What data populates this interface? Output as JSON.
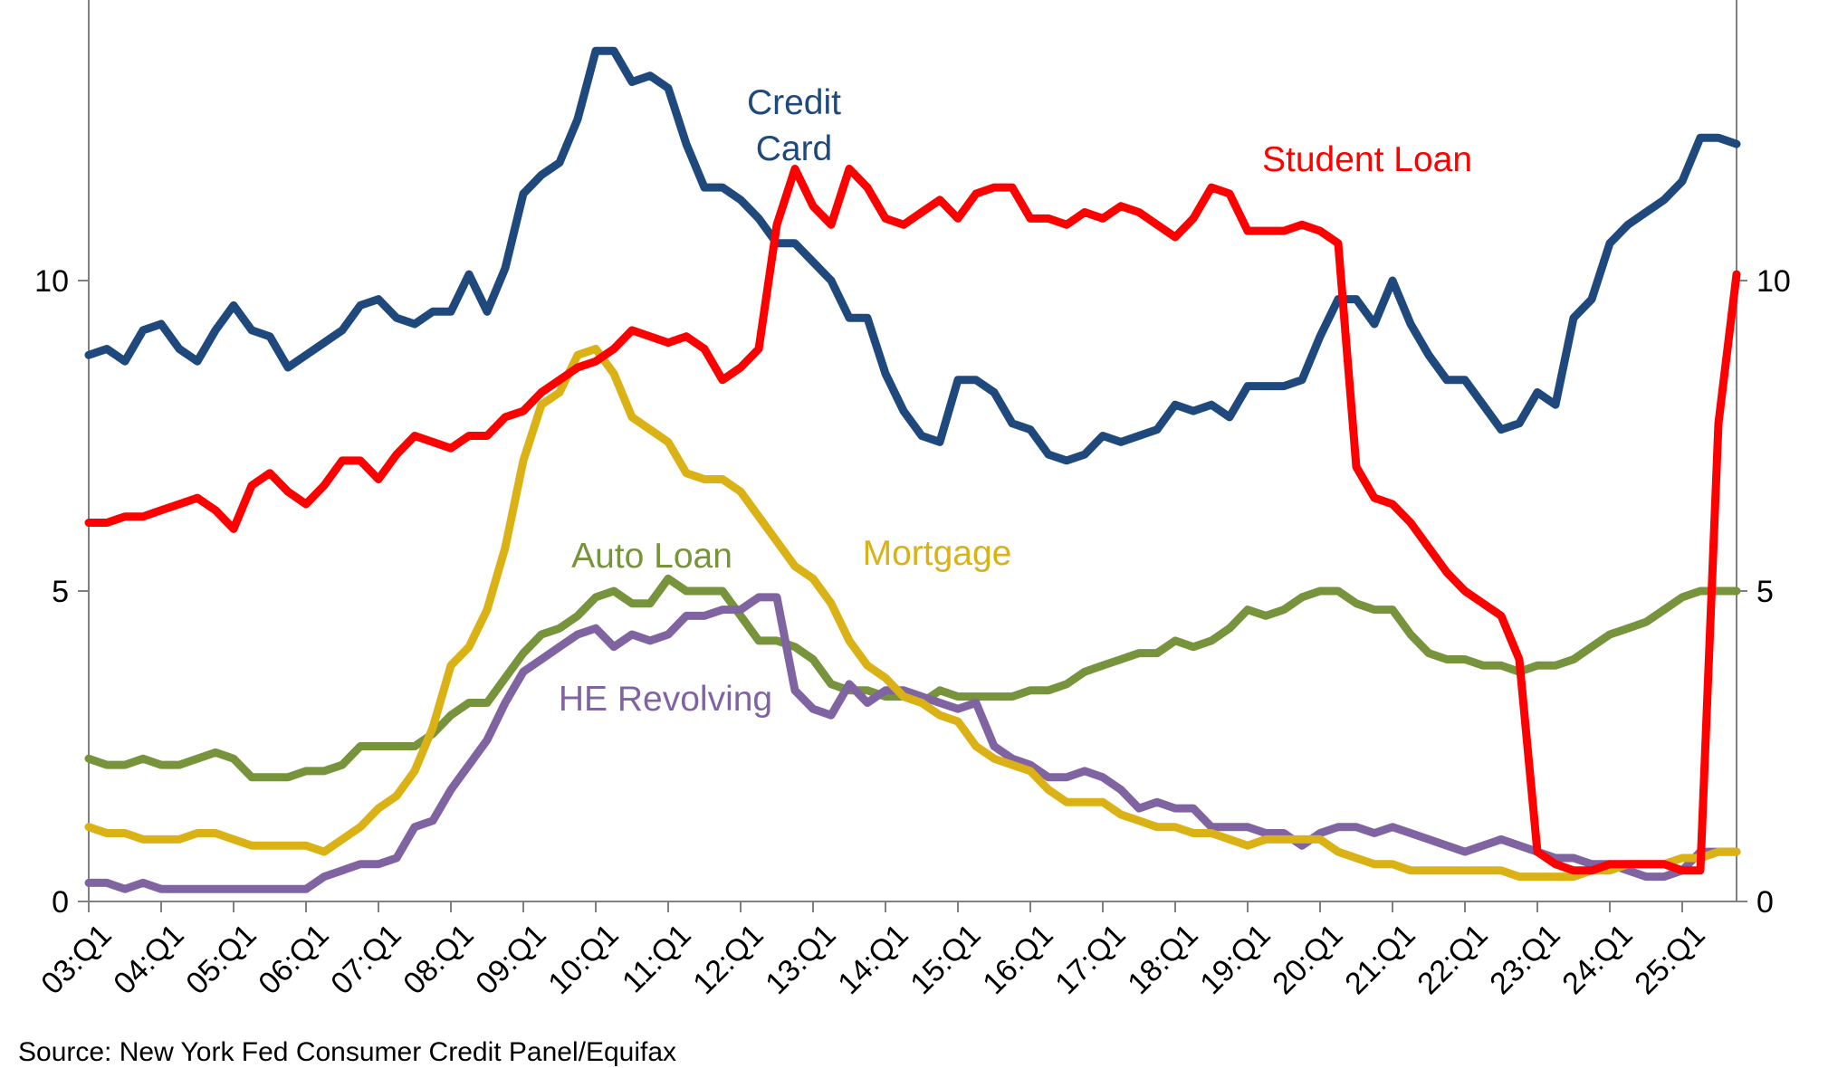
{
  "chart_data": {
    "type": "line",
    "title": "",
    "xlabel": "",
    "ylabel": "",
    "ylim": [
      0,
      14.5
    ],
    "y_ticks": [
      0,
      5,
      10
    ],
    "y_tick_labels": [
      "0",
      "5",
      "10"
    ],
    "right_axis": true,
    "grid": false,
    "x_start": "03:Q1",
    "periods": 92,
    "x_tick_labels": [
      "03:Q1",
      "04:Q1",
      "05:Q1",
      "06:Q1",
      "07:Q1",
      "08:Q1",
      "09:Q1",
      "10:Q1",
      "11:Q1",
      "12:Q1",
      "13:Q1",
      "14:Q1",
      "15:Q1",
      "16:Q1",
      "17:Q1",
      "18:Q1",
      "19:Q1",
      "20:Q1",
      "21:Q1",
      "22:Q1",
      "23:Q1",
      "24:Q1",
      "25:Q1"
    ],
    "series": [
      {
        "name": "Credit Card",
        "label_lines": [
          "Credit",
          "Card"
        ],
        "color": "#1f497d",
        "values": [
          8.8,
          8.9,
          8.7,
          9.2,
          9.3,
          8.9,
          8.7,
          9.2,
          9.6,
          9.2,
          9.1,
          8.6,
          8.8,
          9.0,
          9.2,
          9.6,
          9.7,
          9.4,
          9.3,
          9.5,
          9.5,
          10.1,
          9.5,
          10.2,
          11.4,
          11.7,
          11.9,
          12.6,
          13.7,
          13.7,
          13.2,
          13.3,
          13.1,
          12.2,
          11.5,
          11.5,
          11.3,
          11.0,
          10.6,
          10.6,
          10.3,
          10.0,
          9.4,
          9.4,
          8.5,
          7.9,
          7.5,
          7.4,
          8.4,
          8.4,
          8.2,
          7.7,
          7.6,
          7.2,
          7.1,
          7.2,
          7.5,
          7.4,
          7.5,
          7.6,
          8.0,
          7.9,
          8.0,
          7.8,
          8.3,
          8.3,
          8.3,
          8.4,
          9.1,
          9.7,
          9.7,
          9.3,
          10.0,
          9.3,
          8.8,
          8.4,
          8.4,
          8.0,
          7.6,
          7.7,
          8.2,
          8.0,
          9.4,
          9.7,
          10.6,
          10.9,
          11.1,
          11.3,
          11.6,
          12.3,
          12.3,
          12.2
        ]
      },
      {
        "name": "Student Loan",
        "label_lines": [
          "Student Loan"
        ],
        "color": "#ff0000",
        "values": [
          6.1,
          6.1,
          6.2,
          6.2,
          6.3,
          6.4,
          6.5,
          6.3,
          6.0,
          6.7,
          6.9,
          6.6,
          6.4,
          6.7,
          7.1,
          7.1,
          6.8,
          7.2,
          7.5,
          7.4,
          7.3,
          7.5,
          7.5,
          7.8,
          7.9,
          8.2,
          8.4,
          8.6,
          8.7,
          8.9,
          9.2,
          9.1,
          9.0,
          9.1,
          8.9,
          8.4,
          8.6,
          8.9,
          10.9,
          11.8,
          11.2,
          10.9,
          11.8,
          11.5,
          11.0,
          10.9,
          11.1,
          11.3,
          11.0,
          11.4,
          11.5,
          11.5,
          11.0,
          11.0,
          10.9,
          11.1,
          11.0,
          11.2,
          11.1,
          10.9,
          10.7,
          11.0,
          11.5,
          11.4,
          10.8,
          10.8,
          10.8,
          10.9,
          10.8,
          10.6,
          7.0,
          6.5,
          6.4,
          6.1,
          5.7,
          5.3,
          5.0,
          4.8,
          4.6,
          3.9,
          0.8,
          0.6,
          0.5,
          0.5,
          0.6,
          0.6,
          0.6,
          0.6,
          0.5,
          0.5,
          7.7,
          10.1
        ]
      },
      {
        "name": "Auto Loan",
        "label_lines": [
          "Auto Loan"
        ],
        "color": "#77933c",
        "values": [
          2.3,
          2.2,
          2.2,
          2.3,
          2.2,
          2.2,
          2.3,
          2.4,
          2.3,
          2.0,
          2.0,
          2.0,
          2.1,
          2.1,
          2.2,
          2.5,
          2.5,
          2.5,
          2.5,
          2.7,
          3.0,
          3.2,
          3.2,
          3.6,
          4.0,
          4.3,
          4.4,
          4.6,
          4.9,
          5.0,
          4.8,
          4.8,
          5.2,
          5.0,
          5.0,
          5.0,
          4.6,
          4.2,
          4.2,
          4.1,
          3.9,
          3.5,
          3.4,
          3.4,
          3.3,
          3.3,
          3.2,
          3.4,
          3.3,
          3.3,
          3.3,
          3.3,
          3.4,
          3.4,
          3.5,
          3.7,
          3.8,
          3.9,
          4.0,
          4.0,
          4.2,
          4.1,
          4.2,
          4.4,
          4.7,
          4.6,
          4.7,
          4.9,
          5.0,
          5.0,
          4.8,
          4.7,
          4.7,
          4.3,
          4.0,
          3.9,
          3.9,
          3.8,
          3.8,
          3.7,
          3.8,
          3.8,
          3.9,
          4.1,
          4.3,
          4.4,
          4.5,
          4.7,
          4.9,
          5.0,
          5.0,
          5.0
        ]
      },
      {
        "name": "Mortgage",
        "label_lines": [
          "Mortgage"
        ],
        "color": "#dbb216",
        "values": [
          1.2,
          1.1,
          1.1,
          1.0,
          1.0,
          1.0,
          1.1,
          1.1,
          1.0,
          0.9,
          0.9,
          0.9,
          0.9,
          0.8,
          1.0,
          1.2,
          1.5,
          1.7,
          2.1,
          2.8,
          3.8,
          4.1,
          4.7,
          5.7,
          7.1,
          8.0,
          8.2,
          8.8,
          8.9,
          8.5,
          7.8,
          7.6,
          7.4,
          6.9,
          6.8,
          6.8,
          6.6,
          6.2,
          5.8,
          5.4,
          5.2,
          4.8,
          4.2,
          3.8,
          3.6,
          3.3,
          3.2,
          3.0,
          2.9,
          2.5,
          2.3,
          2.2,
          2.1,
          1.8,
          1.6,
          1.6,
          1.6,
          1.4,
          1.3,
          1.2,
          1.2,
          1.1,
          1.1,
          1.0,
          0.9,
          1.0,
          1.0,
          1.0,
          1.0,
          0.8,
          0.7,
          0.6,
          0.6,
          0.5,
          0.5,
          0.5,
          0.5,
          0.5,
          0.5,
          0.4,
          0.4,
          0.4,
          0.4,
          0.5,
          0.5,
          0.6,
          0.6,
          0.6,
          0.7,
          0.7,
          0.8,
          0.8
        ]
      },
      {
        "name": "HE Revolving",
        "label_lines": [
          "HE Revolving"
        ],
        "color": "#8064a2",
        "values": [
          0.3,
          0.3,
          0.2,
          0.3,
          0.2,
          0.2,
          0.2,
          0.2,
          0.2,
          0.2,
          0.2,
          0.2,
          0.2,
          0.4,
          0.5,
          0.6,
          0.6,
          0.7,
          1.2,
          1.3,
          1.8,
          2.2,
          2.6,
          3.2,
          3.7,
          3.9,
          4.1,
          4.3,
          4.4,
          4.1,
          4.3,
          4.2,
          4.3,
          4.6,
          4.6,
          4.7,
          4.7,
          4.9,
          4.9,
          3.4,
          3.1,
          3.0,
          3.5,
          3.2,
          3.4,
          3.4,
          3.3,
          3.2,
          3.1,
          3.2,
          2.5,
          2.3,
          2.2,
          2.0,
          2.0,
          2.1,
          2.0,
          1.8,
          1.5,
          1.6,
          1.5,
          1.5,
          1.2,
          1.2,
          1.2,
          1.1,
          1.1,
          0.9,
          1.1,
          1.2,
          1.2,
          1.1,
          1.2,
          1.1,
          1.0,
          0.9,
          0.8,
          0.9,
          1.0,
          0.9,
          0.8,
          0.7,
          0.7,
          0.6,
          0.6,
          0.5,
          0.4,
          0.4,
          0.5,
          0.8,
          0.8,
          0.8
        ]
      }
    ]
  },
  "footer": {
    "source": "Source: New York Fed Consumer Credit Panel/Equifax"
  }
}
